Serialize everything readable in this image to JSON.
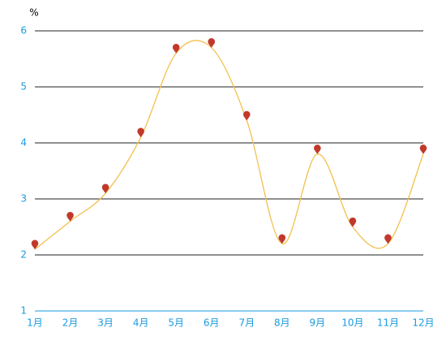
{
  "chart_data": {
    "type": "line",
    "y_unit": "%",
    "categories": [
      "1月",
      "2月",
      "3月",
      "4月",
      "5月",
      "6月",
      "7月",
      "8月",
      "9月",
      "10月",
      "11月",
      "12月"
    ],
    "values": [
      2.1,
      2.6,
      3.1,
      4.1,
      5.6,
      5.7,
      4.4,
      2.2,
      3.8,
      2.5,
      2.2,
      3.8
    ],
    "color": "#f2c14e",
    "marker_color": "#c0392b",
    "label_color": "#1a9be0",
    "ylim": [
      1,
      6
    ],
    "yticks": [
      1,
      2,
      3,
      4,
      5,
      6
    ],
    "grid": true
  }
}
